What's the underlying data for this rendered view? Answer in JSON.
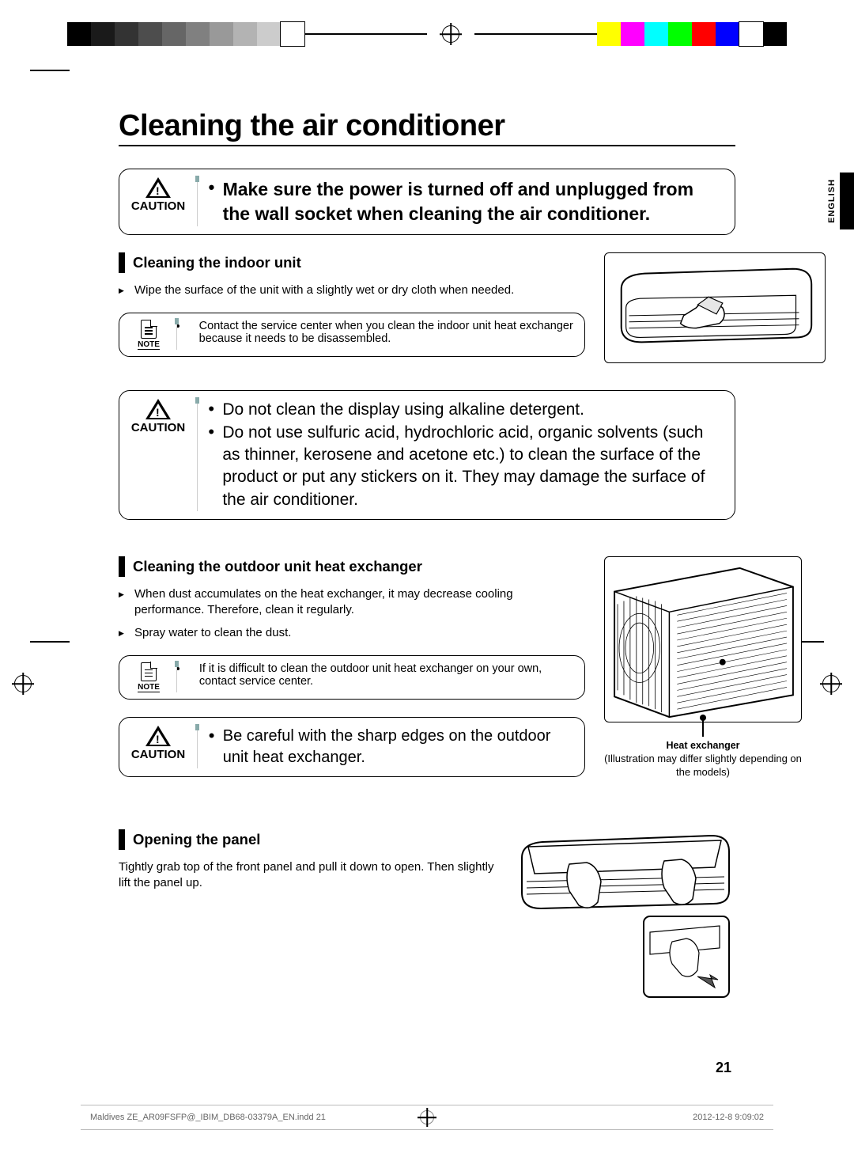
{
  "page_title": "Cleaning the air conditioner",
  "language_tab": "ENGLISH",
  "page_number": "21",
  "footer": {
    "file": "Maldives ZE_AR09FSFP@_IBIM_DB68-03379A_EN.indd   21",
    "timestamp": "2012-12-8   9:09:02"
  },
  "reg_colors_left": [
    "#000000",
    "#1a1a1a",
    "#333333",
    "#4d4d4d",
    "#666666",
    "#808080",
    "#999999",
    "#b3b3b3",
    "#cccccc",
    "#ffffff"
  ],
  "reg_colors_right": [
    "#ffff00",
    "#ff00ff",
    "#00ffff",
    "#00ff00",
    "#ff0000",
    "#0000ff",
    "#ffffff",
    "#000000"
  ],
  "caution1": {
    "label": "CAUTION",
    "items": [
      "Make sure the power is turned off and unplugged from the wall socket when cleaning the air conditioner."
    ]
  },
  "section_indoor": {
    "heading": "Cleaning the indoor unit",
    "bullets": [
      "Wipe the surface of the unit with a slightly wet or dry cloth when needed."
    ]
  },
  "note1": {
    "label": "NOTE",
    "items": [
      "Contact the service center when you clean the indoor unit heat exchanger because it needs to be disassembled."
    ]
  },
  "caution2": {
    "label": "CAUTION",
    "items": [
      "Do not clean the display using alkaline detergent.",
      "Do not use sulfuric acid, hydrochloric acid, organic solvents (such as thinner, kerosene and acetone etc.) to clean the surface of the product or put any stickers on it. They may damage the surface of the air conditioner."
    ]
  },
  "section_outdoor": {
    "heading": "Cleaning the outdoor unit heat exchanger",
    "bullets": [
      "When dust accumulates on the heat exchanger, it may decrease cooling performance. Therefore, clean it regularly.",
      "Spray water to clean the dust."
    ],
    "heat_label": "Heat exchanger",
    "heat_sub": "(Illustration may differ slightly depending on the models)"
  },
  "note2": {
    "label": "NOTE",
    "items": [
      "If it is difficult to clean the outdoor unit heat exchanger on your own, contact service center."
    ]
  },
  "caution3": {
    "label": "CAUTION",
    "items": [
      "Be careful with the sharp edges on the outdoor unit heat exchanger."
    ]
  },
  "section_panel": {
    "heading": "Opening the panel",
    "text": "Tightly grab top of the front panel and pull it down to open. Then slightly lift the panel up."
  }
}
